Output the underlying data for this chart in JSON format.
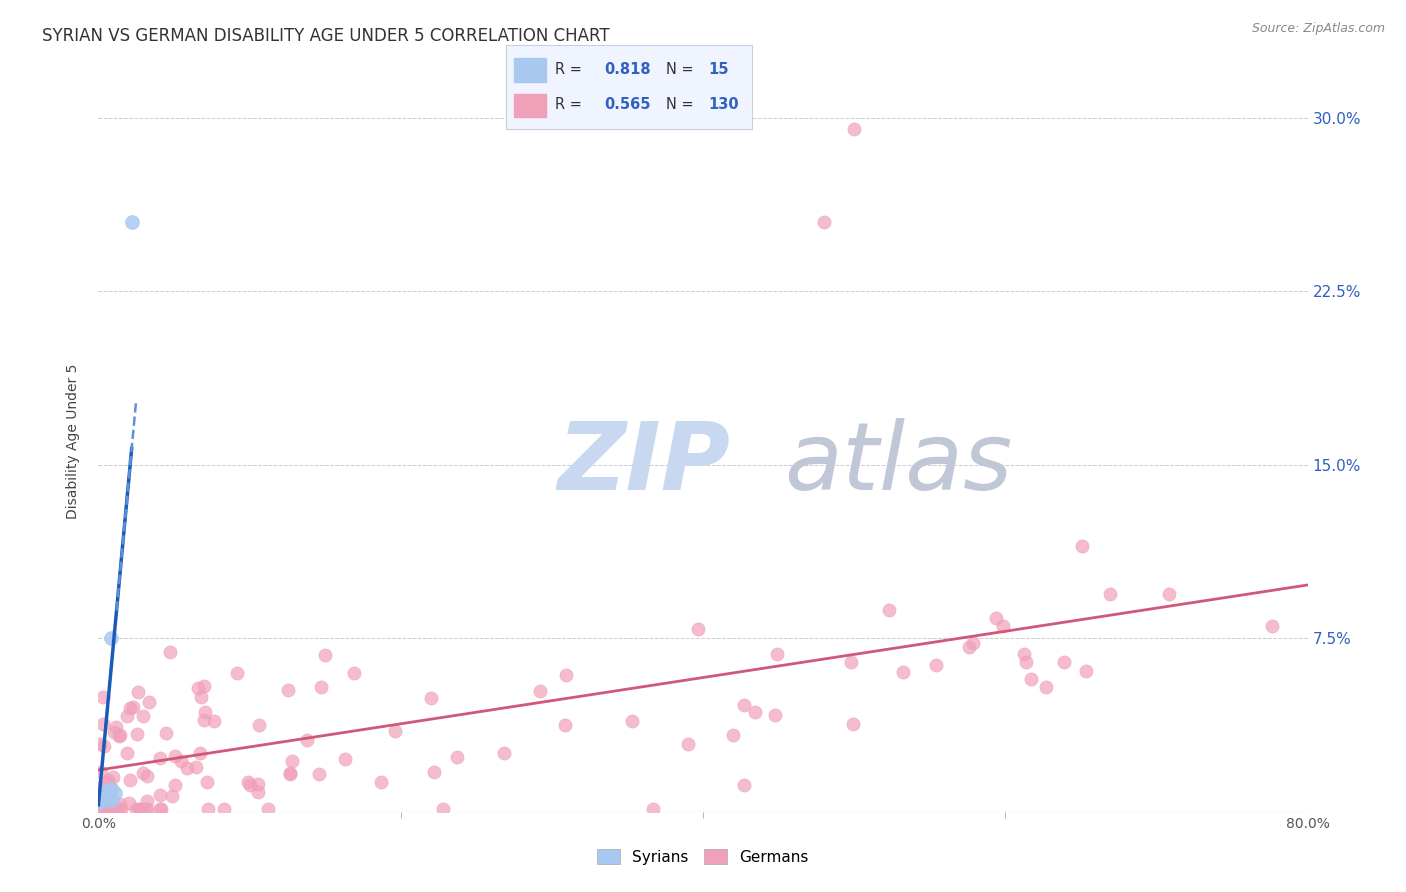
{
  "title": "SYRIAN VS GERMAN DISABILITY AGE UNDER 5 CORRELATION CHART",
  "source": "Source: ZipAtlas.com",
  "ylabel": "Disability Age Under 5",
  "ytick_labels": [
    "7.5%",
    "15.0%",
    "22.5%",
    "30.0%"
  ],
  "ytick_values": [
    0.075,
    0.15,
    0.225,
    0.3
  ],
  "xlim": [
    0.0,
    0.8
  ],
  "ylim": [
    0.0,
    0.32
  ],
  "syrians_R": 0.818,
  "syrians_N": 15,
  "germans_R": 0.565,
  "germans_N": 130,
  "syrians_color": "#a8c8f0",
  "syrians_line_color": "#1a5ab8",
  "syrians_line_dash_color": "#6090d8",
  "germans_color": "#f0a0b8",
  "germans_line_color": "#d05878",
  "background_color": "#ffffff",
  "watermark_zip_color": "#c8d8f0",
  "watermark_atlas_color": "#c0c8d8",
  "legend_box_color": "#f0f4ff",
  "legend_border_color": "#c8d0e0",
  "title_fontsize": 12,
  "axis_label_fontsize": 10,
  "tick_fontsize": 10,
  "legend_fontsize": 11,
  "right_tick_color": "#3060c0"
}
